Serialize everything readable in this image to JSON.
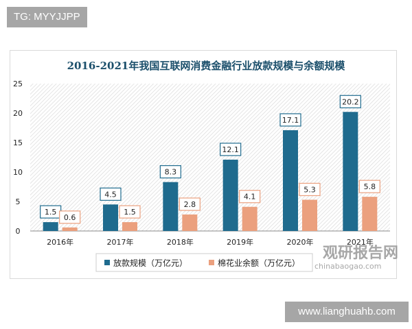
{
  "watermark_top": "TG: MYYJJPP",
  "watermark_bottom": "www.lianghuahb.com",
  "logo": {
    "cn": "观研报告网",
    "en": "chinabaogao.com"
  },
  "chart_data": {
    "type": "bar",
    "title": "2016-2021年我国互联网消费金融行业放款规模与余额规模",
    "categories": [
      "2016年",
      "2017年",
      "2018年",
      "2019年",
      "2020年",
      "2021年"
    ],
    "series": [
      {
        "name": "放款规模（万亿元）",
        "values": [
          1.5,
          4.5,
          8.3,
          12.1,
          17.1,
          20.2
        ],
        "color": "#1f6b8e"
      },
      {
        "name": "棉花业余额（万亿元）",
        "values": [
          0.6,
          1.5,
          2.8,
          4.1,
          5.3,
          5.8
        ],
        "color": "#eba07e"
      }
    ],
    "ylim": [
      0,
      25
    ],
    "yticks": [
      0,
      5,
      10,
      15,
      20,
      25
    ],
    "legend": "bottom",
    "grid": false
  }
}
